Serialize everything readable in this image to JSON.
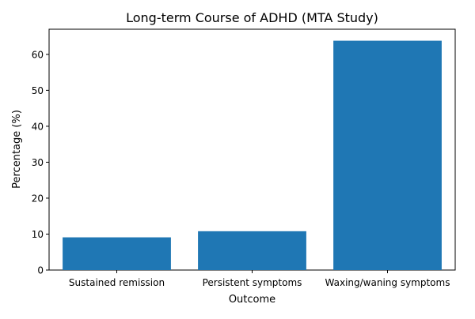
{
  "chart_data": {
    "type": "bar",
    "title": "Long-term Course of ADHD (MTA Study)",
    "xlabel": "Outcome",
    "ylabel": "Percentage (%)",
    "categories": [
      "Sustained remission",
      "Persistent symptoms",
      "Waxing/waning symptoms"
    ],
    "values": [
      9.1,
      10.8,
      63.8
    ],
    "ylim": [
      0,
      67
    ],
    "yticks": [
      0,
      10,
      20,
      30,
      40,
      50,
      60
    ],
    "grid": false,
    "bar_color": "#1f77b4"
  }
}
